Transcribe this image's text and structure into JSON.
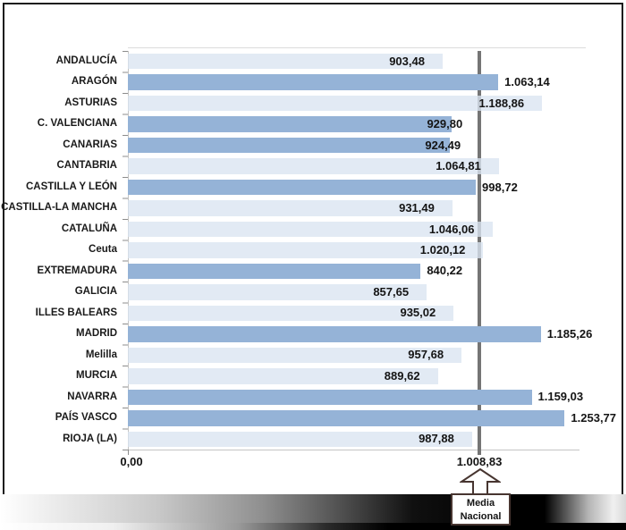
{
  "window": {
    "background": "#ffffff",
    "frame_color": "#1c1c1c"
  },
  "chart_data": {
    "type": "bar",
    "orientation": "horizontal",
    "title": "",
    "xlabel": "",
    "ylabel": "",
    "grid": false,
    "legend": false,
    "axis": {
      "origin_label": "0,00",
      "mean_tick_label": "1.008,83",
      "x_min": 0,
      "x_max_visible": 1314
    },
    "mean_line": {
      "value": 1008.83,
      "label": "1.008,83",
      "color": "#757575"
    },
    "annotation": {
      "line1": "Media",
      "line2": "Nacional"
    },
    "colors": {
      "bar_light": "rgba(218,228,241,0.78)",
      "bar_dark": "#95b3d7",
      "mean_line": "#757575"
    },
    "categories": [
      "ANDALUCÍA",
      "ARAGÓN",
      "ASTURIAS",
      "C. VALENCIANA",
      "CANARIAS",
      "CANTABRIA",
      "CASTILLA Y LEÓN",
      "CASTILLA-LA MANCHA",
      "CATALUÑA",
      "Ceuta",
      "EXTREMADURA",
      "GALICIA",
      "ILLES BALEARS",
      "MADRID",
      "Melilla",
      "MURCIA",
      "NAVARRA",
      "PAÍS VASCO",
      "RIOJA (LA)"
    ],
    "values": [
      903.48,
      1063.14,
      1188.86,
      929.8,
      924.49,
      1064.81,
      998.72,
      931.49,
      1046.06,
      1020.12,
      840.22,
      857.65,
      935.02,
      1185.26,
      957.68,
      889.62,
      1159.03,
      1253.77,
      987.88
    ],
    "value_labels": [
      "903,48",
      "1.063,14",
      "1.188,86",
      "929,80",
      "924,49",
      "1.064,81",
      "998,72",
      "931,49",
      "1.046,06",
      "1.020,12",
      "840,22",
      "857,65",
      "935,02",
      "1.185,26",
      "957,68",
      "889,62",
      "1.159,03",
      "1.253,77",
      "987,88"
    ],
    "bar_styles": [
      "light",
      "dark",
      "light",
      "dark",
      "dark",
      "light",
      "dark",
      "light",
      "light",
      "light",
      "dark",
      "light",
      "light",
      "dark",
      "light",
      "light",
      "dark",
      "dark",
      "light"
    ],
    "label_placement": [
      "in",
      "out",
      "in",
      "edge",
      "edge",
      "in",
      "out",
      "in",
      "in",
      "in",
      "out",
      "in",
      "in",
      "out",
      "in",
      "in",
      "out",
      "out",
      "in"
    ]
  }
}
